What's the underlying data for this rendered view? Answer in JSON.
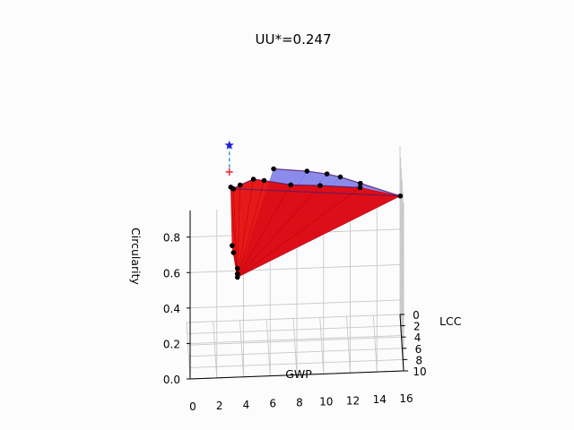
{
  "chart_data": {
    "type": "scatter",
    "projection": "3d",
    "title": "UU*=0.247",
    "xlabel": "GWP",
    "ylabel": "LCC",
    "zlabel": "Circularity",
    "xticks": [
      "0",
      "2",
      "4",
      "6",
      "8",
      "10",
      "12",
      "14",
      "16"
    ],
    "yticks": [
      "0",
      "2",
      "4",
      "6",
      "8",
      "10"
    ],
    "zticks": [
      "0.0",
      "0.2",
      "0.4",
      "0.6",
      "0.8"
    ],
    "xlim": [
      0,
      16
    ],
    "ylim": [
      0,
      10
    ],
    "zlim": [
      0,
      0.95
    ],
    "grid": true,
    "colors": {
      "blue_surface": "#6a6ae6",
      "red_surface": "#e60000",
      "points": "#000000",
      "star_marker": "#1f1fe0",
      "plus_marker": "#e0303a",
      "dashed_line": "#3aa0c8"
    },
    "series": [
      {
        "marker": "point",
        "points": [
          {
            "x": 6.5,
            "y": 1.0,
            "z": 0.88
          },
          {
            "x": 9.0,
            "y": 1.0,
            "z": 0.86
          },
          {
            "x": 10.5,
            "y": 1.0,
            "z": 0.84
          },
          {
            "x": 11.5,
            "y": 1.0,
            "z": 0.82
          },
          {
            "x": 13.0,
            "y": 1.0,
            "z": 0.78
          },
          {
            "x": 16.0,
            "y": 1.0,
            "z": 0.7
          },
          {
            "x": 13.0,
            "y": 0.5,
            "z": 0.74
          },
          {
            "x": 10.0,
            "y": 0.5,
            "z": 0.76
          },
          {
            "x": 7.8,
            "y": 0.5,
            "z": 0.77
          },
          {
            "x": 5.8,
            "y": 0.5,
            "z": 0.8
          },
          {
            "x": 5.0,
            "y": 0.5,
            "z": 0.81
          },
          {
            "x": 4.0,
            "y": 0.5,
            "z": 0.78
          },
          {
            "x": 3.5,
            "y": 0.5,
            "z": 0.76
          },
          {
            "x": 3.3,
            "y": 0.5,
            "z": 0.77
          },
          {
            "x": 3.4,
            "y": 0.5,
            "z": 0.44
          },
          {
            "x": 3.5,
            "y": 0.5,
            "z": 0.4
          },
          {
            "x": 3.8,
            "y": 0.5,
            "z": 0.31
          },
          {
            "x": 3.8,
            "y": 0.5,
            "z": 0.28
          },
          {
            "x": 3.8,
            "y": 0.5,
            "z": 0.26
          }
        ]
      },
      {
        "marker": "star",
        "points": [
          {
            "x": 3.2,
            "y": 0.3,
            "z": 1.0
          }
        ]
      },
      {
        "marker": "plus",
        "points": [
          {
            "x": 3.2,
            "y": 0.3,
            "z": 0.85
          }
        ]
      }
    ]
  }
}
